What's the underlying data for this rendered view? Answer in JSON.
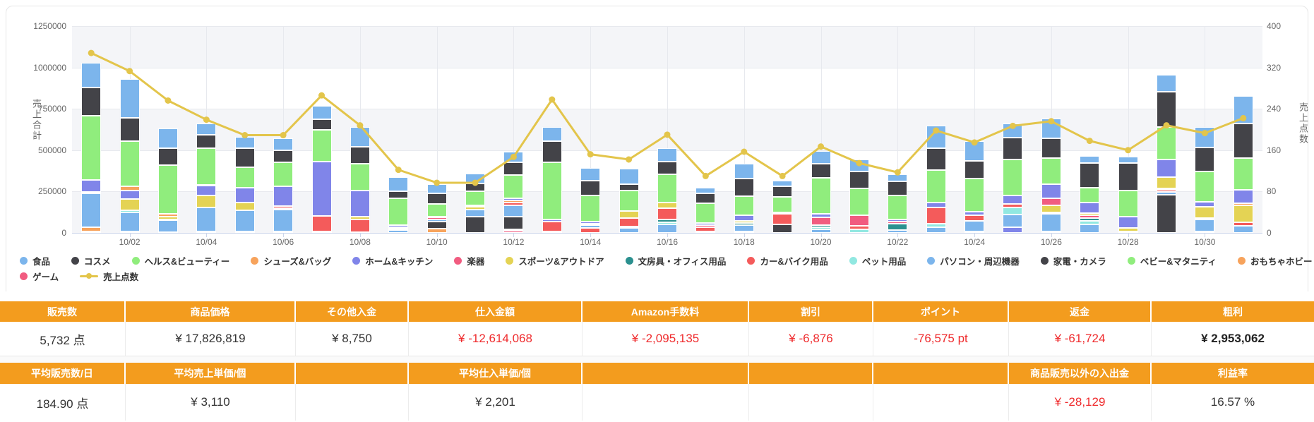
{
  "chart_data": {
    "type": "stacked-bar+line",
    "days": [
      "10/01",
      "10/02",
      "10/03",
      "10/04",
      "10/05",
      "10/06",
      "10/07",
      "10/08",
      "10/09",
      "10/10",
      "10/11",
      "10/12",
      "10/13",
      "10/14",
      "10/15",
      "10/16",
      "10/17",
      "10/18",
      "10/19",
      "10/20",
      "10/21",
      "10/22",
      "10/23",
      "10/24",
      "10/25",
      "10/26",
      "10/27",
      "10/28",
      "10/29",
      "10/30",
      "10/31"
    ],
    "x_axis_labels_shown": [
      "10/02",
      "10/04",
      "10/06",
      "10/08",
      "10/10",
      "10/12",
      "10/14",
      "10/16",
      "10/18",
      "10/20",
      "10/22",
      "10/24",
      "10/26",
      "10/28",
      "10/30"
    ],
    "left_axis": {
      "title": "売上合計",
      "ticks": [
        "0",
        "250000",
        "500000",
        "750000",
        "1000000",
        "1250000"
      ],
      "max": 1250000
    },
    "right_axis": {
      "title": "売上点数",
      "ticks": [
        "0",
        "80",
        "160",
        "240",
        "320",
        "400"
      ],
      "max": 400
    },
    "category_colors": {
      "食品": "#7CB5EC",
      "コスメ": "#434348",
      "ヘルス&ビューティー": "#90ED7D",
      "シューズ&バッグ": "#F7A35C",
      "ホーム&キッチン": "#8085E9",
      "楽器": "#F15C80",
      "スポーツ&アウトドア": "#E4D354",
      "文房具・オフィス用品": "#2B908F",
      "カー&バイク用品": "#F45B5B",
      "ペット用品": "#91E8E1",
      "パソコン・周辺機器": "#7CB5EC",
      "家電・カメラ": "#434348",
      "ベビー&マタニティ": "#90ED7D",
      "おもちゃホビー": "#F7A35C",
      "その他": "#8085E9",
      "ゲーム": "#F15C80"
    },
    "bars_segments_bottom_to_top": [
      [
        [
          "その他",
          8000
        ],
        [
          "おもちゃホビー",
          28000
        ],
        [
          "パソコン・周辺機器",
          205000
        ],
        [
          "スポーツ&アウトドア",
          8000
        ],
        [
          "ホーム&キッチン",
          70000
        ],
        [
          "ヘルス&ビューティー",
          390000
        ],
        [
          "コスメ",
          170000
        ],
        [
          "食品",
          150000
        ]
      ],
      [
        [
          "ベビー&マタニティ",
          8000
        ],
        [
          "パソコン・周辺機器",
          117000
        ],
        [
          "ペット用品",
          13000
        ],
        [
          "スポーツ&アウトドア",
          67000
        ],
        [
          "ホーム&キッチン",
          50000
        ],
        [
          "シューズ&バッグ",
          25000
        ],
        [
          "ヘルス&ビューティー",
          275000
        ],
        [
          "コスメ",
          140000
        ],
        [
          "食品",
          235000
        ]
      ],
      [
        [
          "その他",
          5000
        ],
        [
          "パソコン・周辺機器",
          70000
        ],
        [
          "文房具・オフィス用品",
          8000
        ],
        [
          "スポーツ&アウトドア",
          15000
        ],
        [
          "シューズ&バッグ",
          17000
        ],
        [
          "ヘルス&ビューティー",
          295000
        ],
        [
          "コスメ",
          100000
        ],
        [
          "食品",
          120000
        ]
      ],
      [
        [
          "おもちゃホビー",
          10000
        ],
        [
          "パソコン・周辺機器",
          145000
        ],
        [
          "スポーツ&アウトドア",
          70000
        ],
        [
          "ホーム&キッチン",
          60000
        ],
        [
          "カー&バイク用品",
          5000
        ],
        [
          "ヘルス&ビューティー",
          220000
        ],
        [
          "コスメ",
          85000
        ],
        [
          "食品",
          65000
        ]
      ],
      [
        [
          "おもちゃホビー",
          8000
        ],
        [
          "パソコン・周辺機器",
          127000
        ],
        [
          "スポーツ&アウトドア",
          50000
        ],
        [
          "ホーム&キッチン",
          90000
        ],
        [
          "ヘルス&ビューティー",
          120000
        ],
        [
          "コスメ",
          115000
        ],
        [
          "食品",
          70000
        ]
      ],
      [
        [
          "おもちゃホビー",
          10000
        ],
        [
          "パソコン・周辺機器",
          130000
        ],
        [
          "文房具・オフィス用品",
          10000
        ],
        [
          "カー&バイク用品",
          10000
        ],
        [
          "ホーム&キッチン",
          120000
        ],
        [
          "ヘルス&ビューティー",
          145000
        ],
        [
          "コスメ",
          75000
        ],
        [
          "食品",
          70000
        ]
      ],
      [
        [
          "その他",
          8000
        ],
        [
          "カー&バイク用品",
          95000
        ],
        [
          "ホーム&キッチン",
          330000
        ],
        [
          "ヘルス&ビューティー",
          190000
        ],
        [
          "コスメ",
          62000
        ],
        [
          "食品",
          85000
        ]
      ],
      [
        [
          "その他",
          5000
        ],
        [
          "カー&バイク用品",
          75000
        ],
        [
          "スポーツ&アウトドア",
          20000
        ],
        [
          "ホーム&キッチン",
          155000
        ],
        [
          "ヘルス&ビューティー",
          165000
        ],
        [
          "コスメ",
          100000
        ],
        [
          "食品",
          120000
        ]
      ],
      [
        [
          "パソコン・周辺機器",
          15000
        ],
        [
          "カー&バイク用品",
          12000
        ],
        [
          "文房具・オフィス用品",
          8000
        ],
        [
          "ホーム&キッチン",
          10000
        ],
        [
          "ヘルス&ビューティー",
          165000
        ],
        [
          "コスメ",
          40000
        ],
        [
          "食品",
          85000
        ]
      ],
      [
        [
          "おもちゃホビー",
          25000
        ],
        [
          "家電・カメラ",
          42000
        ],
        [
          "パソコン・周辺機器",
          15000
        ],
        [
          "楽器",
          10000
        ],
        [
          "ホーム&キッチン",
          7000
        ],
        [
          "ヘルス&ビューティー",
          77000
        ],
        [
          "コスメ",
          63000
        ],
        [
          "食品",
          55000
        ]
      ],
      [
        [
          "家電・カメラ",
          100000
        ],
        [
          "パソコン・周辺機器",
          42000
        ],
        [
          "スポーツ&アウトドア",
          15000
        ],
        [
          "ホーム&キッチン",
          10000
        ],
        [
          "ヘルス&ビューティー",
          85000
        ],
        [
          "コスメ",
          48000
        ],
        [
          "食品",
          60000
        ]
      ],
      [
        [
          "ゲーム",
          12000
        ],
        [
          "その他",
          10000
        ],
        [
          "家電・カメラ",
          75000
        ],
        [
          "パソコン・周辺機器",
          70000
        ],
        [
          "カー&バイク用品",
          15000
        ],
        [
          "シューズ&バッグ",
          15000
        ],
        [
          "ホーム&キッチン",
          12000
        ],
        [
          "ヘルス&ビューティー",
          140000
        ],
        [
          "コスメ",
          78000
        ],
        [
          "食品",
          63000
        ]
      ],
      [
        [
          "ベビー&マタニティ",
          10000
        ],
        [
          "カー&バイク用品",
          57000
        ],
        [
          "ホーム&キッチン",
          14000
        ],
        [
          "ヘルス&ビューティー",
          345000
        ],
        [
          "コスメ",
          128000
        ],
        [
          "食品",
          85000
        ]
      ],
      [
        [
          "カー&バイク用品",
          28000
        ],
        [
          "パソコン・周辺機器",
          20000
        ],
        [
          "その他",
          8000
        ],
        [
          "ホーム&キッチン",
          12000
        ],
        [
          "ヘルス&ビューティー",
          156000
        ],
        [
          "コスメ",
          92000
        ],
        [
          "食品",
          78000
        ]
      ],
      [
        [
          "パソコン・周辺機器",
          30000
        ],
        [
          "ペット用品",
          10000
        ],
        [
          "カー&バイク用品",
          50000
        ],
        [
          "スポーツ&アウトドア",
          42000
        ],
        [
          "ヘルス&ビューティー",
          122000
        ],
        [
          "コスメ",
          40000
        ],
        [
          "食品",
          95000
        ]
      ],
      [
        [
          "パソコン・周辺機器",
          53000
        ],
        [
          "ペット用品",
          12000
        ],
        [
          "文房具・オフィス用品",
          15000
        ],
        [
          "カー&バイク用品",
          70000
        ],
        [
          "スポーツ&アウトドア",
          35000
        ],
        [
          "ヘルス&ビューティー",
          167000
        ],
        [
          "コスメ",
          80000
        ],
        [
          "食品",
          78000
        ]
      ],
      [
        [
          "その他",
          8000
        ],
        [
          "カー&バイク用品",
          25000
        ],
        [
          "楽器",
          12000
        ],
        [
          "ホーム&キッチン",
          15000
        ],
        [
          "ヘルス&ビューティー",
          120000
        ],
        [
          "コスメ",
          57000
        ],
        [
          "食品",
          35000
        ]
      ],
      [
        [
          "ゲーム",
          8000
        ],
        [
          "パソコン・周辺機器",
          40000
        ],
        [
          "文房具・オフィス用品",
          10000
        ],
        [
          "スポーツ&アウトドア",
          14000
        ],
        [
          "ホーム&キッチン",
          35000
        ],
        [
          "ヘルス&ビューティー",
          115000
        ],
        [
          "コスメ",
          106000
        ],
        [
          "食品",
          90000
        ]
      ],
      [
        [
          "家電・カメラ",
          50000
        ],
        [
          "カー&バイク用品",
          64000
        ],
        [
          "楽器",
          10000
        ],
        [
          "ヘルス&ビューティー",
          92000
        ],
        [
          "コスメ",
          64000
        ],
        [
          "食品",
          35000
        ]
      ],
      [
        [
          "パソコン・周辺機器",
          20000
        ],
        [
          "ペット用品",
          15000
        ],
        [
          "文房具・オフィス用品",
          10000
        ],
        [
          "楽器",
          50000
        ],
        [
          "ホーム&キッチン",
          21000
        ],
        [
          "ヘルス&ビューティー",
          215000
        ],
        [
          "コスメ",
          85000
        ],
        [
          "食品",
          77000
        ]
      ],
      [
        [
          "ペット用品",
          21000
        ],
        [
          "カー&バイク用品",
          21000
        ],
        [
          "楽器",
          63000
        ],
        [
          "ヘルス&ビューティー",
          162000
        ],
        [
          "コスメ",
          105000
        ],
        [
          "食品",
          70000
        ]
      ],
      [
        [
          "パソコン・周辺機器",
          15000
        ],
        [
          "文房具・オフィス用品",
          42000
        ],
        [
          "楽器",
          10000
        ],
        [
          "ホーム&キッチン",
          15000
        ],
        [
          "ヘルス&ビューティー",
          145000
        ],
        [
          "コスメ",
          85000
        ],
        [
          "食品",
          42000
        ]
      ],
      [
        [
          "パソコン・周辺機器",
          35000
        ],
        [
          "ペット用品",
          21000
        ],
        [
          "カー&バイク用品",
          98000
        ],
        [
          "ホーム&キッチン",
          28000
        ],
        [
          "ヘルス&ビューティー",
          197000
        ],
        [
          "コスメ",
          134000
        ],
        [
          "食品",
          136000
        ]
      ],
      [
        [
          "おもちゃホビー",
          8000
        ],
        [
          "パソコン・周辺機器",
          63000
        ],
        [
          "カー&バイク用品",
          35000
        ],
        [
          "ホーム&キッチン",
          20000
        ],
        [
          "ヘルス&ビューティー",
          204000
        ],
        [
          "コスメ",
          105000
        ],
        [
          "食品",
          120000
        ]
      ],
      [
        [
          "その他",
          35000
        ],
        [
          "パソコン・周辺機器",
          77000
        ],
        [
          "ペット用品",
          42000
        ],
        [
          "カー&バイク用品",
          21000
        ],
        [
          "ホーム&キッチン",
          49000
        ],
        [
          "ヘルス&ビューティー",
          218000
        ],
        [
          "コスメ",
          133000
        ],
        [
          "食品",
          87000
        ]
      ],
      [
        [
          "その他",
          10000
        ],
        [
          "パソコン・周辺機器",
          105000
        ],
        [
          "文房具・オフィス用品",
          10000
        ],
        [
          "スポーツ&アウトドア",
          42000
        ],
        [
          "楽器",
          42000
        ],
        [
          "ホーム&キッチン",
          84000
        ],
        [
          "ヘルス&ビューティー",
          160000
        ],
        [
          "コスメ",
          119000
        ],
        [
          "食品",
          117000
        ]
      ],
      [
        [
          "パソコン・周辺機器",
          50000
        ],
        [
          "ペット用品",
          22000
        ],
        [
          "文房具・オフィス用品",
          18000
        ],
        [
          "楽器",
          15000
        ],
        [
          "スポーツ&アウトドア",
          15000
        ],
        [
          "ホーム&キッチン",
          63000
        ],
        [
          "ヘルス&ビューティー",
          92000
        ],
        [
          "コスメ",
          147000
        ],
        [
          "食品",
          42000
        ]
      ],
      [
        [
          "楽器",
          10000
        ],
        [
          "スポーツ&アウトドア",
          20000
        ],
        [
          "ホーム&キッチン",
          70000
        ],
        [
          "ヘルス&ビューティー",
          155000
        ],
        [
          "コスメ",
          169000
        ],
        [
          "食品",
          35000
        ]
      ],
      [
        [
          "家電・カメラ",
          232000
        ],
        [
          "パソコン・周辺機器",
          15000
        ],
        [
          "カー&バイク用品",
          12000
        ],
        [
          "文房具・オフィス用品",
          10000
        ],
        [
          "スポーツ&アウトドア",
          66000
        ],
        [
          "ホーム&キッチン",
          107000
        ],
        [
          "ヘルス&ビューティー",
          199000
        ],
        [
          "コスメ",
          211000
        ],
        [
          "食品",
          103000
        ]
      ],
      [
        [
          "その他",
          10000
        ],
        [
          "パソコン・周辺機器",
          70000
        ],
        [
          "カー&バイク用品",
          8000
        ],
        [
          "スポーツ&アウトドア",
          70000
        ],
        [
          "ホーム&キッチン",
          28000
        ],
        [
          "ヘルス&ビューティー",
          185000
        ],
        [
          "コスメ",
          147000
        ],
        [
          "食品",
          124000
        ]
      ],
      [
        [
          "パソコン・周辺機器",
          42000
        ],
        [
          "カー&バイク用品",
          21000
        ],
        [
          "スポーツ&アウトドア",
          105000
        ],
        [
          "シューズ&バッグ",
          10000
        ],
        [
          "ホーム&キッチン",
          84000
        ],
        [
          "ヘルス&ビューティー",
          190000
        ],
        [
          "コスメ",
          211000
        ],
        [
          "食品",
          164000
        ]
      ]
    ],
    "line": {
      "name": "売上点数",
      "color": "#E3C54B",
      "values": [
        348,
        313,
        256,
        219,
        189,
        189,
        266,
        208,
        122,
        97,
        97,
        147,
        258,
        152,
        142,
        190,
        110,
        157,
        110,
        167,
        135,
        117,
        198,
        175,
        207,
        216,
        178,
        160,
        208,
        193,
        222
      ]
    }
  },
  "legend": {
    "row1": [
      "食品",
      "コスメ",
      "ヘルス&ビューティー",
      "シューズ&バッグ",
      "ホーム&キッチン",
      "楽器",
      "スポーツ&アウトドア",
      "文房具・オフィス用品",
      "カー&バイク用品",
      "ペット用品",
      "パソコン・周辺機器",
      "家電・カメラ",
      "ベビー&マタニティ",
      "おもちゃホビー",
      "その他"
    ],
    "row2": [
      "ゲーム"
    ],
    "line_item": "売上点数"
  },
  "tables": [
    {
      "headers": [
        "販売数",
        "商品価格",
        "その他入金",
        "仕入金額",
        "Amazon手数料",
        "割引",
        "ポイント",
        "返金",
        "粗利"
      ],
      "values": [
        "5,732 点",
        "¥ 17,826,819",
        "¥ 8,750",
        "¥ -12,614,068",
        "¥ -2,095,135",
        "¥ -6,876",
        "-76,575 pt",
        "¥ -61,724",
        "¥ 2,953,062"
      ],
      "value_styles": [
        "normal",
        "normal",
        "normal",
        "red",
        "red",
        "red",
        "red",
        "red",
        "bold"
      ]
    },
    {
      "headers": [
        "平均販売数/日",
        "平均売上単価/個",
        "",
        "平均仕入単価/個",
        "",
        "",
        "",
        "商品販売以外の入出金",
        "利益率"
      ],
      "values": [
        "184.90 点",
        "¥ 3,110",
        "",
        "¥ 2,201",
        "",
        "",
        "",
        "¥ -28,129",
        "16.57 %"
      ],
      "value_styles": [
        "normal",
        "normal",
        "normal",
        "normal",
        "normal",
        "normal",
        "normal",
        "red",
        "normal"
      ]
    }
  ]
}
